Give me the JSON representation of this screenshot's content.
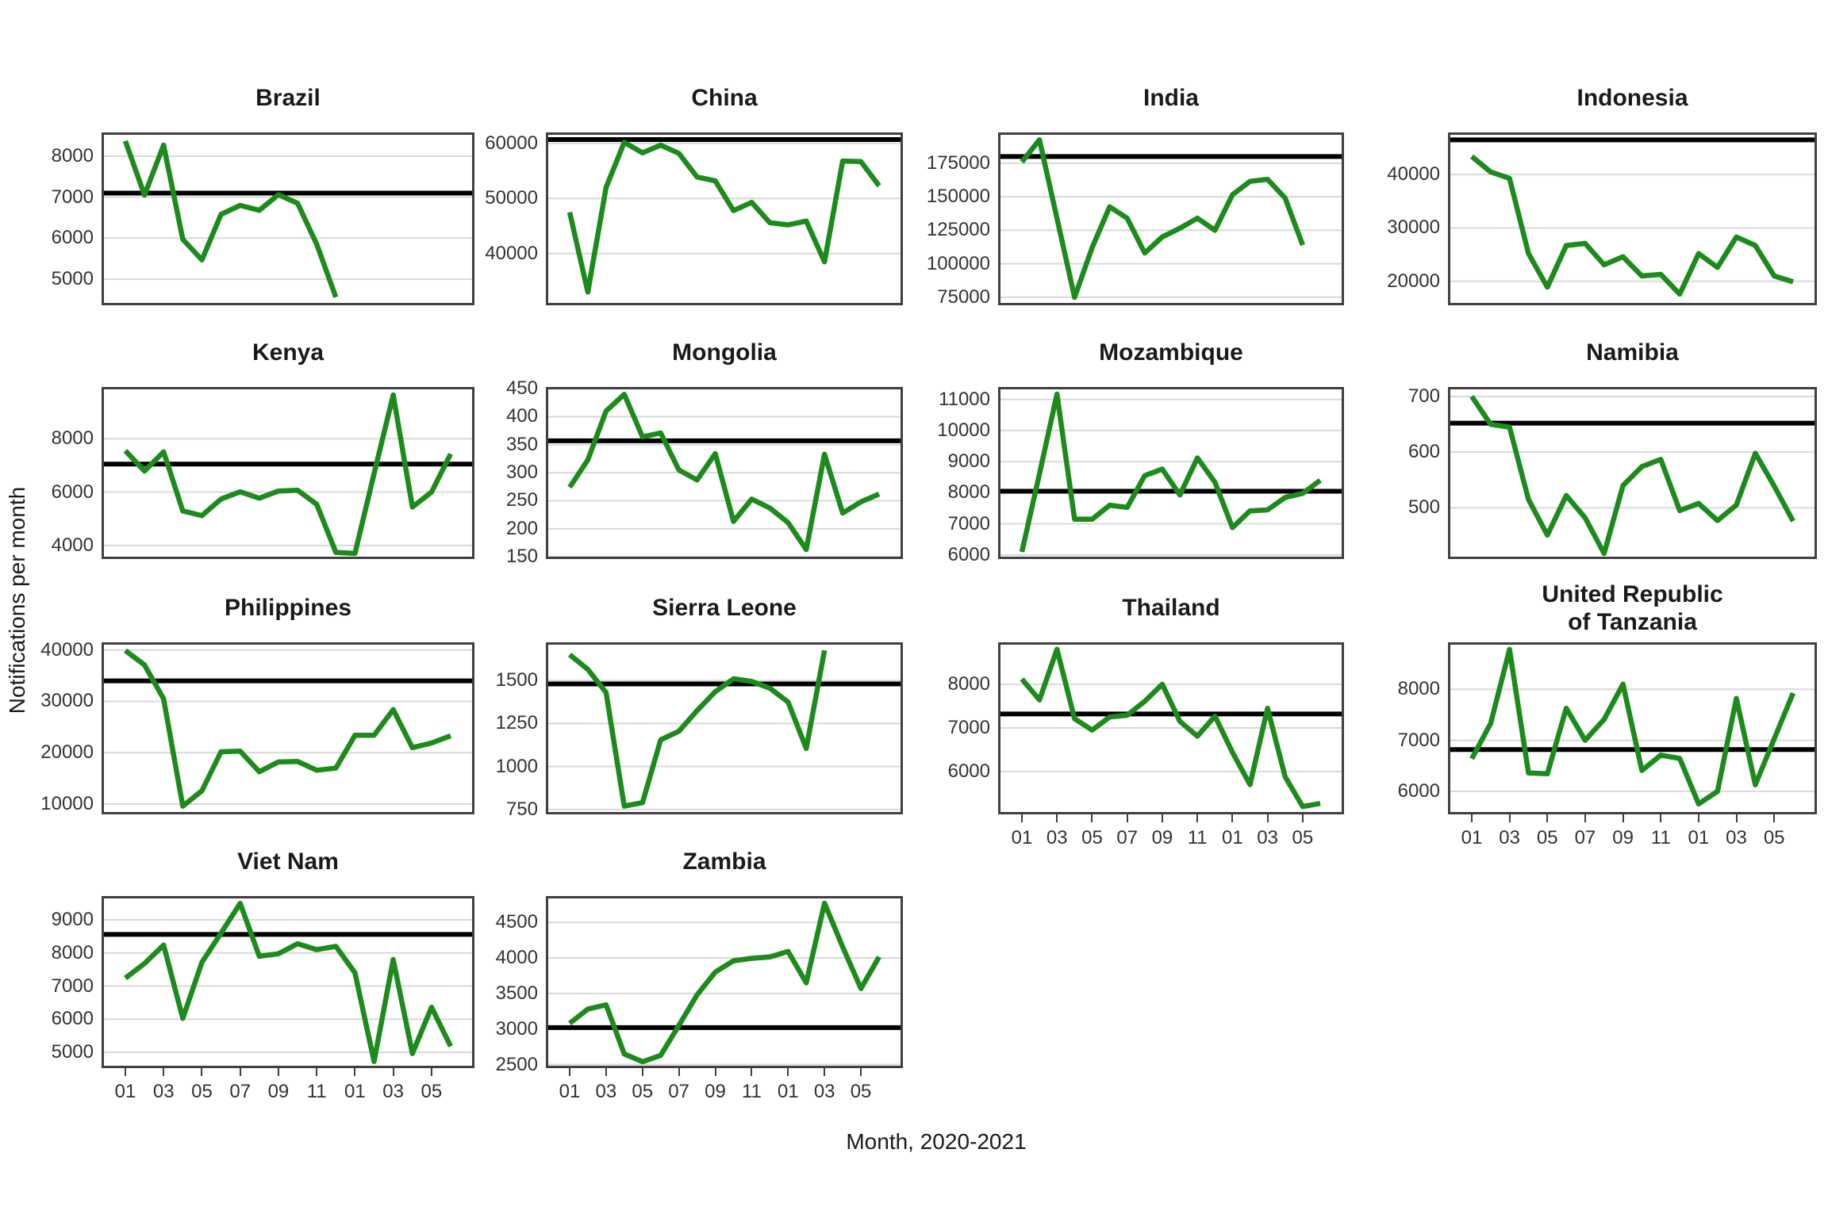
{
  "figure": {
    "y_axis_label": "Notifications per month",
    "x_axis_label": "Month, 2020-2021",
    "x_tick_labels": [
      "01",
      "03",
      "05",
      "07",
      "09",
      "11",
      "01",
      "03",
      "05"
    ],
    "line_color": "#1c8b1c",
    "ref_line_color": "#000000",
    "gridline_color": "#d9d9d9",
    "border_color": "#404040"
  },
  "chart_data": [
    {
      "type": "line",
      "name": "brazil",
      "title_lines": [
        "Brazil"
      ],
      "yticks": [
        5000,
        6000,
        7000,
        8000
      ],
      "ylim": [
        4360,
        8580
      ],
      "ref_line": 7100,
      "show_x_labels": false,
      "values": [
        8370,
        7050,
        8270,
        5970,
        5470,
        6580,
        6800,
        6680,
        7060,
        6850,
        5850,
        4560
      ]
    },
    {
      "type": "line",
      "name": "china",
      "title_lines": [
        "China"
      ],
      "yticks": [
        40000,
        50000,
        60000
      ],
      "ylim": [
        30600,
        62000
      ],
      "ref_line": 60700,
      "show_x_labels": false,
      "values": [
        47500,
        33000,
        52000,
        60200,
        58300,
        59700,
        58200,
        53900,
        53200,
        47800,
        49300,
        45600,
        45200,
        45900,
        38500,
        56800,
        56700,
        52300
      ]
    },
    {
      "type": "line",
      "name": "india",
      "title_lines": [
        "India"
      ],
      "yticks": [
        75000,
        100000,
        125000,
        150000,
        175000
      ],
      "ylim": [
        69000,
        198000
      ],
      "ref_line": 180000,
      "show_x_labels": false,
      "values": [
        176000,
        192500,
        134000,
        75000,
        112000,
        142500,
        134000,
        108000,
        120000,
        126500,
        134000,
        125000,
        151500,
        161500,
        163000,
        149000,
        114000
      ]
    },
    {
      "type": "line",
      "name": "indonesia",
      "title_lines": [
        "Indonesia"
      ],
      "yticks": [
        20000,
        30000,
        40000
      ],
      "ylim": [
        15500,
        47900
      ],
      "ref_line": 46500,
      "show_x_labels": false,
      "values": [
        43400,
        40500,
        39300,
        25200,
        18900,
        26700,
        27100,
        23100,
        24600,
        21000,
        21300,
        17600,
        25200,
        22600,
        28300,
        26700,
        21000,
        19900
      ]
    },
    {
      "type": "line",
      "name": "kenya",
      "title_lines": [
        "Kenya"
      ],
      "yticks": [
        4000,
        6000,
        8000
      ],
      "ylim": [
        3490,
        9940
      ],
      "ref_line": 7050,
      "show_x_labels": false,
      "values": [
        7550,
        6790,
        7510,
        5290,
        5120,
        5740,
        6010,
        5770,
        6040,
        6070,
        5540,
        3740,
        3700,
        6690,
        9640,
        5440,
        6000,
        7430
      ]
    },
    {
      "type": "line",
      "name": "mongolia",
      "title_lines": [
        "Mongolia"
      ],
      "yticks": [
        150,
        200,
        250,
        300,
        350,
        400,
        450
      ],
      "ylim": [
        146,
        453
      ],
      "ref_line": 357,
      "show_x_labels": false,
      "values": [
        274,
        323,
        410,
        440,
        364,
        371,
        305,
        287,
        334,
        213,
        253,
        237,
        211,
        163,
        333,
        228,
        248,
        262
      ]
    },
    {
      "type": "line",
      "name": "mozambique",
      "title_lines": [
        "Mozambique"
      ],
      "yticks": [
        6000,
        7000,
        8000,
        9000,
        10000,
        11000
      ],
      "ylim": [
        5870,
        11400
      ],
      "ref_line": 8050,
      "show_x_labels": false,
      "values": [
        6100,
        8600,
        11170,
        7150,
        7150,
        7600,
        7530,
        8550,
        8760,
        7930,
        9120,
        8340,
        6880,
        7420,
        7450,
        7850,
        7980,
        8400
      ]
    },
    {
      "type": "line",
      "name": "namibia",
      "title_lines": [
        "Namibia"
      ],
      "yticks": [
        500,
        600,
        700
      ],
      "ylim": [
        408,
        717
      ],
      "ref_line": 652,
      "show_x_labels": false,
      "values": [
        700,
        650,
        645,
        515,
        451,
        522,
        482,
        418,
        540,
        574,
        587,
        495,
        508,
        477,
        505,
        598,
        539,
        476
      ]
    },
    {
      "type": "line",
      "name": "philippines",
      "title_lines": [
        "Philippines"
      ],
      "yticks": [
        10000,
        20000,
        30000,
        40000
      ],
      "ylim": [
        8000,
        41500
      ],
      "ref_line": 34000,
      "show_x_labels": false,
      "values": [
        39900,
        37100,
        30500,
        9600,
        12600,
        20200,
        20300,
        16300,
        18200,
        18300,
        16600,
        17000,
        23400,
        23400,
        28400,
        21000,
        21900,
        23300
      ]
    },
    {
      "type": "line",
      "name": "sierra-leone",
      "title_lines": [
        "Sierra Leone"
      ],
      "yticks": [
        750,
        1000,
        1250,
        1500
      ],
      "ylim": [
        722,
        1722
      ],
      "ref_line": 1480,
      "show_x_labels": false,
      "values": [
        1650,
        1565,
        1430,
        770,
        790,
        1155,
        1205,
        1325,
        1435,
        1510,
        1495,
        1455,
        1375,
        1105,
        1675
      ]
    },
    {
      "type": "line",
      "name": "thailand",
      "title_lines": [
        "Thailand"
      ],
      "yticks": [
        6000,
        7000,
        8000
      ],
      "ylim": [
        5020,
        8960
      ],
      "ref_line": 7320,
      "show_x_labels": true,
      "values": [
        8120,
        7640,
        8800,
        7210,
        6950,
        7250,
        7290,
        7610,
        8000,
        7150,
        6810,
        7270,
        6440,
        5700,
        7450,
        5880,
        5200,
        5270
      ]
    },
    {
      "type": "line",
      "name": "united-republic-of-tanzania",
      "title_lines": [
        "United Republic",
        "of Tanzania"
      ],
      "yticks": [
        6000,
        7000,
        8000
      ],
      "ylim": [
        5550,
        8920
      ],
      "ref_line": 6820,
      "show_x_labels": true,
      "values": [
        6640,
        7330,
        8780,
        6360,
        6345,
        7630,
        7000,
        7410,
        8100,
        6410,
        6710,
        6645,
        5755,
        6000,
        7820,
        6130,
        7030,
        7925
      ]
    },
    {
      "type": "line",
      "name": "viet-nam",
      "title_lines": [
        "Viet Nam"
      ],
      "yticks": [
        5000,
        6000,
        7000,
        8000,
        9000
      ],
      "ylim": [
        4520,
        9720
      ],
      "ref_line": 8560,
      "show_x_labels": true,
      "values": [
        7240,
        7680,
        8240,
        6025,
        7720,
        8600,
        9500,
        7900,
        7975,
        8280,
        8100,
        8200,
        7400,
        4720,
        7800,
        4960,
        6360,
        5180
      ]
    },
    {
      "type": "line",
      "name": "zambia",
      "title_lines": [
        "Zambia"
      ],
      "yticks": [
        2500,
        3000,
        3500,
        4000,
        4500
      ],
      "ylim": [
        2450,
        4870
      ],
      "ref_line": 3020,
      "show_x_labels": true,
      "values": [
        3080,
        3280,
        3340,
        2650,
        2540,
        2630,
        3050,
        3480,
        3800,
        3960,
        3995,
        4015,
        4090,
        3650,
        4770,
        4155,
        3570,
        4015
      ]
    }
  ]
}
